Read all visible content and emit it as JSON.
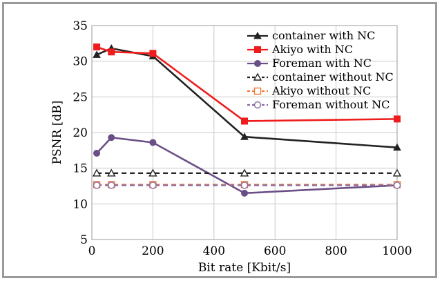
{
  "chart_data": {
    "type": "line",
    "title": "",
    "xlabel": "Bit rate [Kbit/s]",
    "ylabel": "PSNR [dB]",
    "xlim": [
      0,
      1000
    ],
    "ylim": [
      5,
      35
    ],
    "xticks": [
      0,
      200,
      400,
      600,
      800,
      1000
    ],
    "yticks": [
      5,
      10,
      15,
      20,
      25,
      30,
      35
    ],
    "grid": true,
    "legend_position": "top-right",
    "series": [
      {
        "name": "container with NC",
        "color": "#222222",
        "dashed": false,
        "marker": "triangle-filled",
        "x": [
          16,
          64,
          200,
          500,
          1000
        ],
        "y": [
          30.9,
          31.8,
          30.7,
          19.4,
          17.9
        ]
      },
      {
        "name": "Akiyo with NC",
        "color": "#ee1c1c",
        "dashed": false,
        "marker": "square-filled",
        "x": [
          16,
          64,
          200,
          500,
          1000
        ],
        "y": [
          32.0,
          31.3,
          31.1,
          21.6,
          21.9
        ]
      },
      {
        "name": "Foreman with NC",
        "color": "#6a4f86",
        "dashed": false,
        "marker": "circle-filled",
        "x": [
          16,
          64,
          200,
          500,
          1000
        ],
        "y": [
          17.1,
          19.3,
          18.6,
          11.5,
          12.6
        ]
      },
      {
        "name": "container without NC",
        "color": "#222222",
        "dashed": true,
        "marker": "triangle-open",
        "x": [
          16,
          64,
          200,
          500,
          1000
        ],
        "y": [
          14.3,
          14.3,
          14.3,
          14.3,
          14.3
        ]
      },
      {
        "name": "Akiyo without NC",
        "color": "#ee7a3a",
        "dashed": true,
        "marker": "square-open",
        "x": [
          16,
          64,
          200,
          500,
          1000
        ],
        "y": [
          12.7,
          12.7,
          12.7,
          12.7,
          12.7
        ]
      },
      {
        "name": "Foreman without NC",
        "color": "#8a6aa0",
        "dashed": true,
        "marker": "circle-open",
        "x": [
          16,
          64,
          200,
          500,
          1000
        ],
        "y": [
          12.6,
          12.6,
          12.6,
          12.6,
          12.6
        ]
      }
    ]
  }
}
